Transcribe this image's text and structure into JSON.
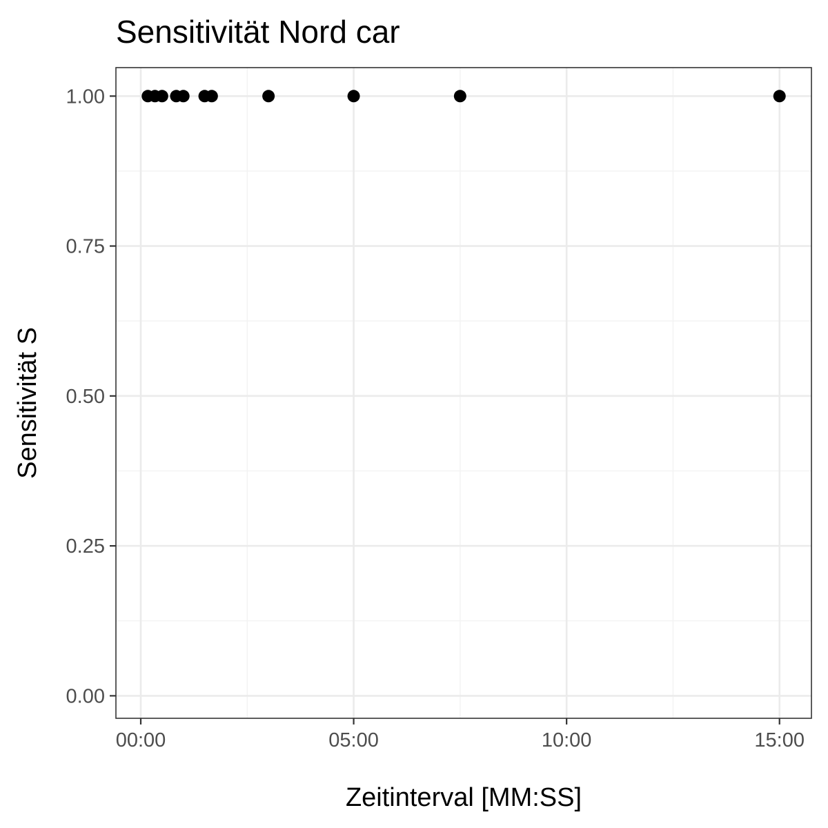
{
  "chart_data": {
    "type": "scatter",
    "title": "Sensitivität Nord car",
    "xlabel": "Zeitinterval [MM:SS]",
    "ylabel": "Sensitivität S",
    "x_unit": "MM:SS",
    "x_ticks": [
      "00:00",
      "05:00",
      "10:00",
      "15:00"
    ],
    "x_tick_values": [
      "00:00",
      "05:00",
      "10:00",
      "15:00"
    ],
    "x_minor_grid": [
      "02:30",
      "07:30",
      "12:30"
    ],
    "y_ticks": [
      "0.00",
      "0.25",
      "0.50",
      "0.75",
      "1.00"
    ],
    "y_tick_values": [
      0,
      0.25,
      0.5,
      0.75,
      1.0
    ],
    "y_minor_grid": [
      0.125,
      0.375,
      0.625,
      0.875
    ],
    "xlim": [
      "-00:35",
      "15:45"
    ],
    "ylim": [
      -0.0375,
      1.0475
    ],
    "grid": true,
    "theme": "bw",
    "points": [
      {
        "x": "00:10",
        "y": 1.0
      },
      {
        "x": "00:20",
        "y": 1.0
      },
      {
        "x": "00:30",
        "y": 1.0
      },
      {
        "x": "00:50",
        "y": 1.0
      },
      {
        "x": "01:00",
        "y": 1.0
      },
      {
        "x": "01:30",
        "y": 1.0
      },
      {
        "x": "01:40",
        "y": 1.0
      },
      {
        "x": "03:00",
        "y": 1.0
      },
      {
        "x": "05:00",
        "y": 1.0
      },
      {
        "x": "07:30",
        "y": 1.0
      },
      {
        "x": "15:00",
        "y": 1.0
      }
    ],
    "colors": {
      "point": "#000000",
      "grid_major": "#ebebeb",
      "grid_minor": "#f2f2f2",
      "panel_border": "#333333",
      "tick_text": "#4d4d4d",
      "tick_mark": "#333333"
    }
  }
}
